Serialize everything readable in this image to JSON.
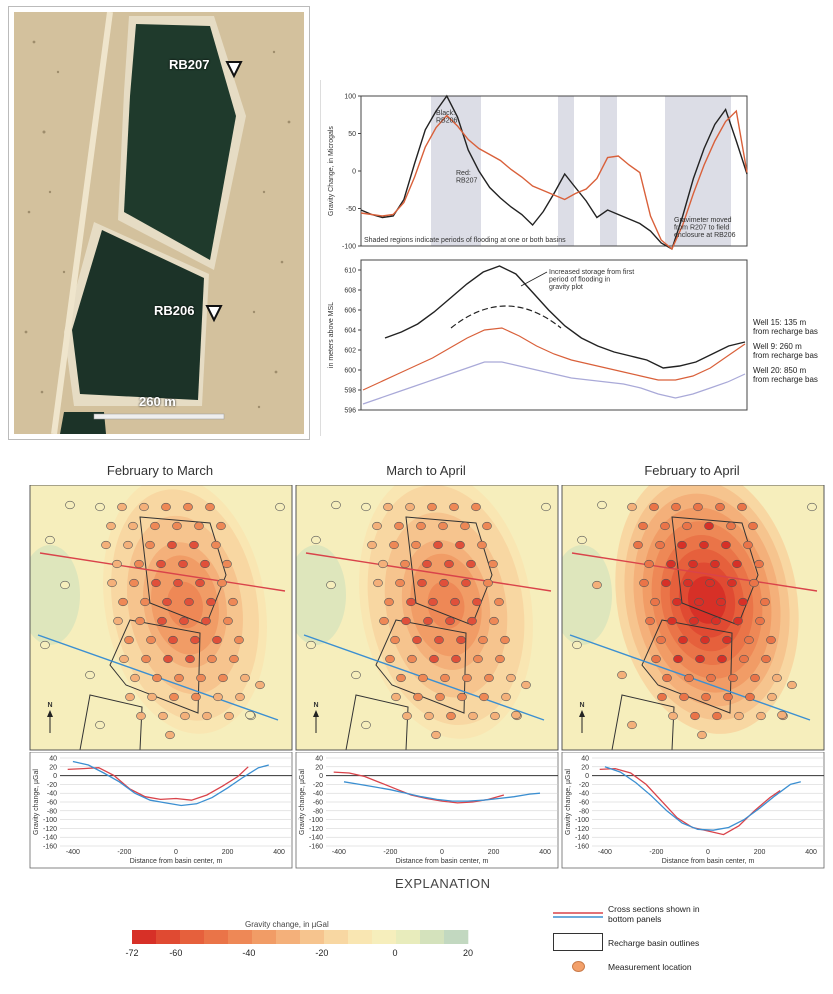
{
  "aerial": {
    "labels": [
      "RB207",
      "RB206"
    ],
    "scale_label": "260 m"
  },
  "top_chart": {
    "ylabel": "Gravity Change, in Microgals",
    "yticks": [
      "100",
      "50",
      "0",
      "-50",
      "-100"
    ],
    "annotations": {
      "black": "Black:\nRB206",
      "red": "Red:\nRB207",
      "moved": "Gravimeter moved\nfrom R207 to field\nenclosure at RB206",
      "shaded": "Shaded regions indicate periods of flooding at one or both basins"
    }
  },
  "well_chart": {
    "ylabel": "in meters above MSL",
    "yticks": [
      "610",
      "608",
      "606",
      "604",
      "602",
      "600",
      "598",
      "596"
    ],
    "annotation": "Increased storage from first\nperiod of flooding in\ngravity plot",
    "wells": [
      {
        "label": "Well 15: 135 m\nfrom recharge bas",
        "color": "#222222"
      },
      {
        "label": "Well 9: 260 m\nfrom recharge bas",
        "color": "#d9603a"
      },
      {
        "label": "Well 20: 850 m\nfrom recharge bas",
        "color": "#a9a9d8"
      }
    ]
  },
  "maps": [
    {
      "title": "February to March"
    },
    {
      "title": "March to April"
    },
    {
      "title": "February to April"
    }
  ],
  "north": "N",
  "profile": {
    "ylabel": "Gravity change, µGal",
    "xlabel": "Distance from basin center, m",
    "yticks": [
      "40",
      "20",
      "0",
      "-20",
      "-40",
      "-60",
      "-80",
      "-100",
      "-120",
      "-140",
      "-160"
    ],
    "xticks": [
      "-400",
      "-200",
      "0",
      "200",
      "400"
    ]
  },
  "explanation": {
    "title": "EXPLANATION",
    "colorbar_title": "Gravity change, in µGal",
    "colorbar_ticks": [
      "-72",
      "-60",
      "-40",
      "-20",
      "0",
      "20"
    ],
    "colors": [
      "#d73027",
      "#e04a32",
      "#e6603c",
      "#ea7448",
      "#ee8856",
      "#f19c66",
      "#f4b07a",
      "#f6c48e",
      "#f8d7a2",
      "#f9e6b2",
      "#f6eebc",
      "#e8ecbc",
      "#d4e2bc",
      "#c2d8c0"
    ],
    "items": [
      {
        "label": "Cross sections shown in\nbottom panels"
      },
      {
        "label": "Recharge basin outlines"
      },
      {
        "label": "Measurement location"
      }
    ]
  },
  "chart_data": [
    {
      "type": "line",
      "ylabel": "Gravity Change, in Microgals",
      "ylim": [
        -100,
        100
      ],
      "series": [
        {
          "name": "Black: RB206",
          "color": "#222222",
          "values": [
            -52,
            -58,
            -62,
            -60,
            -38,
            10,
            55,
            80,
            100,
            72,
            28,
            0,
            -22,
            -36,
            -48,
            -58,
            -72,
            -54,
            -30,
            -4,
            -22,
            -40,
            -62,
            -52,
            -58,
            -64,
            -70,
            -80,
            -96,
            -104,
            -60,
            -10,
            30,
            62,
            82,
            40,
            -4
          ]
        },
        {
          "name": "Red: RB207",
          "color": "#d9603a",
          "values": [
            -56,
            -58,
            -60,
            -58,
            -42,
            -8,
            32,
            58,
            74,
            60,
            42,
            30,
            22,
            14,
            2,
            -8,
            -20,
            -26,
            -32,
            -38,
            -30,
            -24,
            -10,
            18,
            20,
            8,
            -2,
            -60,
            -92,
            -104,
            -72,
            -30,
            8,
            40,
            66,
            80,
            -2
          ]
        }
      ]
    },
    {
      "type": "line",
      "ylabel": "in meters above MSL",
      "ylim": [
        596,
        611
      ],
      "series": [
        {
          "name": "Well 15: 135 m from recharge bas",
          "color": "#222222",
          "values": [
            603.2,
            603.8,
            604.6,
            605.8,
            607.2,
            608.6,
            609.8,
            610.4,
            609.6,
            607.8,
            606.0,
            604.4,
            603.2,
            602.4,
            601.8,
            601.4,
            601.0,
            600.2,
            600.4,
            600.8,
            601.6,
            602.4,
            602.8
          ]
        },
        {
          "name": "Well 9: 260 m from recharge bas",
          "color": "#d9603a",
          "values": [
            598.0,
            598.8,
            599.6,
            600.4,
            601.2,
            602.2,
            603.2,
            604.0,
            604.2,
            603.4,
            602.4,
            601.6,
            601.0,
            600.6,
            600.2,
            599.8,
            599.4,
            599.0,
            599.0,
            599.4,
            600.2,
            601.4,
            602.6
          ]
        },
        {
          "name": "Well 20: 850 m from recharge bas",
          "color": "#a9a9d8",
          "values": [
            596.6,
            597.2,
            597.8,
            598.4,
            599.0,
            599.6,
            600.2,
            600.8,
            600.8,
            600.4,
            600.0,
            599.6,
            599.2,
            599.0,
            598.8,
            598.6,
            598.2,
            597.6,
            597.2,
            597.6,
            598.2,
            598.8,
            599.6
          ]
        }
      ]
    },
    {
      "type": "line",
      "title": "February to March",
      "xlabel": "Distance from basin center, m",
      "ylabel": "Gravity change, µGal",
      "ylim": [
        -160,
        40
      ],
      "series": [
        {
          "color": "#d9434a",
          "x": [
            -420,
            -360,
            -300,
            -240,
            -180,
            -120,
            -60,
            0,
            60,
            120,
            180,
            240,
            280
          ],
          "values": [
            14,
            16,
            18,
            0,
            -30,
            -48,
            -54,
            -52,
            -56,
            -44,
            -24,
            -2,
            20
          ]
        },
        {
          "color": "#3b8fd1",
          "x": [
            -400,
            -340,
            -280,
            -220,
            -160,
            -100,
            -40,
            20,
            80,
            140,
            200,
            260,
            320,
            360
          ],
          "values": [
            32,
            24,
            6,
            -14,
            -40,
            -56,
            -62,
            -68,
            -64,
            -50,
            -28,
            -4,
            18,
            24
          ]
        }
      ]
    },
    {
      "type": "line",
      "title": "March to April",
      "xlabel": "Distance from basin center, m",
      "ylabel": "Gravity change, µGal",
      "ylim": [
        -160,
        40
      ],
      "series": [
        {
          "color": "#d9434a",
          "x": [
            -420,
            -360,
            -300,
            -240,
            -180,
            -120,
            -60,
            0,
            60,
            120,
            180,
            240
          ],
          "values": [
            8,
            6,
            -2,
            -16,
            -30,
            -44,
            -52,
            -58,
            -62,
            -60,
            -54,
            -44
          ]
        },
        {
          "color": "#3b8fd1",
          "x": [
            -380,
            -320,
            -260,
            -200,
            -140,
            -80,
            -20,
            40,
            100,
            160,
            220,
            280,
            340,
            380
          ],
          "values": [
            -14,
            -20,
            -26,
            -32,
            -40,
            -48,
            -54,
            -58,
            -58,
            -56,
            -52,
            -48,
            -42,
            -40
          ]
        }
      ]
    },
    {
      "type": "line",
      "title": "February to April",
      "xlabel": "Distance from basin center, m",
      "ylabel": "Gravity change, µGal",
      "ylim": [
        -160,
        40
      ],
      "series": [
        {
          "color": "#d9434a",
          "x": [
            -420,
            -360,
            -300,
            -240,
            -180,
            -120,
            -60,
            0,
            60,
            120,
            180,
            240,
            280
          ],
          "values": [
            14,
            16,
            6,
            -20,
            -58,
            -96,
            -118,
            -126,
            -134,
            -114,
            -80,
            -50,
            -34
          ]
        },
        {
          "color": "#3b8fd1",
          "x": [
            -400,
            -340,
            -280,
            -220,
            -160,
            -100,
            -40,
            20,
            80,
            140,
            200,
            260,
            320,
            360
          ],
          "values": [
            20,
            8,
            -16,
            -46,
            -80,
            -108,
            -122,
            -124,
            -118,
            -100,
            -74,
            -46,
            -20,
            -14
          ]
        }
      ]
    }
  ]
}
